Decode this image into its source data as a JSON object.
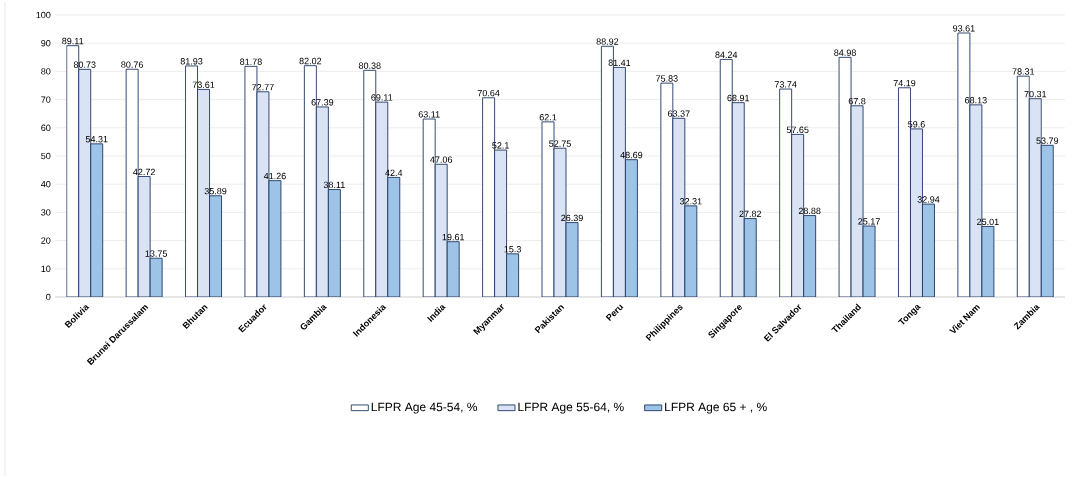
{
  "chart_data": {
    "type": "bar",
    "categories": [
      "Bolivia",
      "Brunei Darussalam",
      "Bhutan",
      "Ecuador",
      "Gambia",
      "Indonesia",
      "India",
      "Myanmar",
      "Pakistan",
      "Peru",
      "Philippines",
      "Singapore",
      "El Salvador",
      "Thailand",
      "Tonga",
      "Viet Nam",
      "Zambia"
    ],
    "series": [
      {
        "name": "LFPR Age 45-54, %",
        "color": "#ffffff",
        "values": [
          89.11,
          80.76,
          81.93,
          81.78,
          82.02,
          80.38,
          63.11,
          70.64,
          62.1,
          88.92,
          75.83,
          84.24,
          73.74,
          84.98,
          74.19,
          93.61,
          78.31
        ]
      },
      {
        "name": "LFPR Age 55-64, %",
        "color": "#dae3f3",
        "values": [
          80.73,
          42.72,
          73.61,
          72.77,
          67.39,
          69.11,
          47.06,
          52.1,
          52.75,
          81.41,
          63.37,
          68.91,
          57.65,
          67.8,
          59.6,
          68.13,
          70.31
        ]
      },
      {
        "name": "LFPR Age 65 + , %",
        "color": "#9dc3e6",
        "values": [
          54.31,
          13.75,
          35.89,
          41.26,
          38.11,
          42.4,
          19.61,
          15.3,
          26.39,
          48.69,
          32.31,
          27.82,
          28.88,
          25.17,
          32.94,
          25.01,
          53.79
        ]
      }
    ],
    "ylim": [
      0,
      100
    ],
    "yticks": [
      0,
      10,
      20,
      30,
      40,
      50,
      60,
      70,
      80,
      90,
      100
    ],
    "grid": "y",
    "legend": "bottom",
    "data_labels": true
  }
}
